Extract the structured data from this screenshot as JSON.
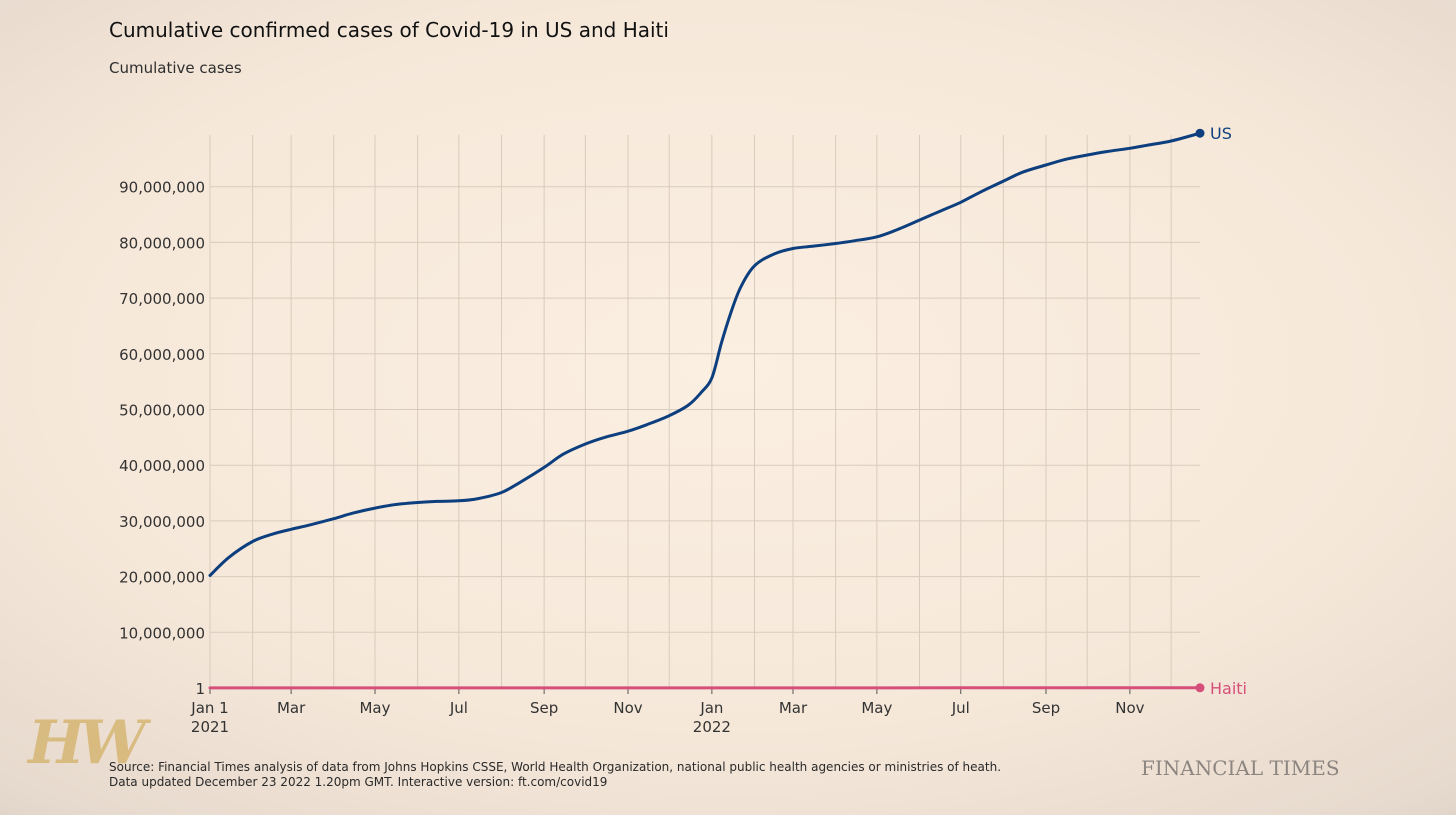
{
  "header": {
    "title": "Cumulative confirmed cases of Covid-19 in US and Haiti",
    "subtitle": "Cumulative cases"
  },
  "footer": {
    "source": "Source: Financial Times analysis of data from Johns Hopkins CSSE, World Health Organization, national public health agencies or ministries of heath.",
    "updated": "Data updated December 23 2022 1.20pm GMT. Interactive version: ft.com/covid19",
    "publisher": "FINANCIAL TIMES",
    "watermark": "HW"
  },
  "colors": {
    "background": "#f6e8d9",
    "grid": "#d9cbbd",
    "us": "#0d3f7e",
    "haiti": "#d64f7a",
    "axis_text": "#333333"
  },
  "chart_data": {
    "type": "line",
    "title": "Cumulative confirmed cases of Covid-19 in US and Haiti",
    "subtitle": "Cumulative cases",
    "xlabel": "",
    "ylabel": "",
    "xlim": [
      "2021-01-01",
      "2022-12-22"
    ],
    "ylim": [
      1,
      100000000
    ],
    "grid": true,
    "legend": "end-of-line labels",
    "y_ticks": [
      {
        "value": 1,
        "label": "1"
      },
      {
        "value": 10000000,
        "label": "10,000,000"
      },
      {
        "value": 20000000,
        "label": "20,000,000"
      },
      {
        "value": 30000000,
        "label": "30,000,000"
      },
      {
        "value": 40000000,
        "label": "40,000,000"
      },
      {
        "value": 50000000,
        "label": "50,000,000"
      },
      {
        "value": 60000000,
        "label": "60,000,000"
      },
      {
        "value": 70000000,
        "label": "70,000,000"
      },
      {
        "value": 80000000,
        "label": "80,000,000"
      },
      {
        "value": 90000000,
        "label": "90,000,000"
      }
    ],
    "x_ticks": [
      {
        "date": "2021-01-01",
        "label": "Jan 1",
        "sublabel": "2021"
      },
      {
        "date": "2021-03-01",
        "label": "Mar",
        "sublabel": ""
      },
      {
        "date": "2021-05-01",
        "label": "May",
        "sublabel": ""
      },
      {
        "date": "2021-07-01",
        "label": "Jul",
        "sublabel": ""
      },
      {
        "date": "2021-09-01",
        "label": "Sep",
        "sublabel": ""
      },
      {
        "date": "2021-11-01",
        "label": "Nov",
        "sublabel": ""
      },
      {
        "date": "2022-01-01",
        "label": "Jan",
        "sublabel": "2022"
      },
      {
        "date": "2022-03-01",
        "label": "Mar",
        "sublabel": ""
      },
      {
        "date": "2022-05-01",
        "label": "May",
        "sublabel": ""
      },
      {
        "date": "2022-07-01",
        "label": "Jul",
        "sublabel": ""
      },
      {
        "date": "2022-09-01",
        "label": "Sep",
        "sublabel": ""
      },
      {
        "date": "2022-11-01",
        "label": "Nov",
        "sublabel": ""
      }
    ],
    "month_grid": [
      "2021-02-01",
      "2021-03-01",
      "2021-04-01",
      "2021-05-01",
      "2021-06-01",
      "2021-07-01",
      "2021-08-01",
      "2021-09-01",
      "2021-10-01",
      "2021-11-01",
      "2021-12-01",
      "2022-01-01",
      "2022-02-01",
      "2022-03-01",
      "2022-04-01",
      "2022-05-01",
      "2022-06-01",
      "2022-07-01",
      "2022-08-01",
      "2022-09-01",
      "2022-10-01",
      "2022-11-01",
      "2022-12-01"
    ],
    "series": [
      {
        "name": "US",
        "color": "#0d3f7e",
        "points": [
          {
            "x": "2021-01-01",
            "y": 20200000
          },
          {
            "x": "2021-01-15",
            "y": 23500000
          },
          {
            "x": "2021-02-01",
            "y": 26300000
          },
          {
            "x": "2021-02-15",
            "y": 27600000
          },
          {
            "x": "2021-03-01",
            "y": 28500000
          },
          {
            "x": "2021-03-15",
            "y": 29300000
          },
          {
            "x": "2021-04-01",
            "y": 30400000
          },
          {
            "x": "2021-04-15",
            "y": 31400000
          },
          {
            "x": "2021-05-01",
            "y": 32300000
          },
          {
            "x": "2021-05-15",
            "y": 32900000
          },
          {
            "x": "2021-06-01",
            "y": 33300000
          },
          {
            "x": "2021-06-15",
            "y": 33500000
          },
          {
            "x": "2021-07-01",
            "y": 33600000
          },
          {
            "x": "2021-07-15",
            "y": 34000000
          },
          {
            "x": "2021-08-01",
            "y": 35100000
          },
          {
            "x": "2021-08-15",
            "y": 37000000
          },
          {
            "x": "2021-09-01",
            "y": 39600000
          },
          {
            "x": "2021-09-15",
            "y": 42000000
          },
          {
            "x": "2021-10-01",
            "y": 43800000
          },
          {
            "x": "2021-10-15",
            "y": 45000000
          },
          {
            "x": "2021-11-01",
            "y": 46100000
          },
          {
            "x": "2021-11-15",
            "y": 47300000
          },
          {
            "x": "2021-12-01",
            "y": 48900000
          },
          {
            "x": "2021-12-15",
            "y": 50800000
          },
          {
            "x": "2021-12-24",
            "y": 53000000
          },
          {
            "x": "2022-01-01",
            "y": 55700000
          },
          {
            "x": "2022-01-08",
            "y": 62000000
          },
          {
            "x": "2022-01-15",
            "y": 67500000
          },
          {
            "x": "2022-01-22",
            "y": 72000000
          },
          {
            "x": "2022-02-01",
            "y": 75800000
          },
          {
            "x": "2022-02-15",
            "y": 77900000
          },
          {
            "x": "2022-03-01",
            "y": 78900000
          },
          {
            "x": "2022-03-15",
            "y": 79300000
          },
          {
            "x": "2022-04-01",
            "y": 79800000
          },
          {
            "x": "2022-04-15",
            "y": 80300000
          },
          {
            "x": "2022-05-01",
            "y": 81000000
          },
          {
            "x": "2022-05-15",
            "y": 82200000
          },
          {
            "x": "2022-06-01",
            "y": 84000000
          },
          {
            "x": "2022-06-15",
            "y": 85500000
          },
          {
            "x": "2022-07-01",
            "y": 87200000
          },
          {
            "x": "2022-07-15",
            "y": 89000000
          },
          {
            "x": "2022-08-01",
            "y": 91000000
          },
          {
            "x": "2022-08-15",
            "y": 92600000
          },
          {
            "x": "2022-09-01",
            "y": 93900000
          },
          {
            "x": "2022-09-15",
            "y": 94900000
          },
          {
            "x": "2022-10-01",
            "y": 95700000
          },
          {
            "x": "2022-10-15",
            "y": 96300000
          },
          {
            "x": "2022-11-01",
            "y": 96900000
          },
          {
            "x": "2022-11-15",
            "y": 97500000
          },
          {
            "x": "2022-12-01",
            "y": 98200000
          },
          {
            "x": "2022-12-22",
            "y": 99600000
          }
        ]
      },
      {
        "name": "Haiti",
        "color": "#d64f7a",
        "points": [
          {
            "x": "2021-01-01",
            "y": 10700
          },
          {
            "x": "2021-07-01",
            "y": 19400
          },
          {
            "x": "2022-01-01",
            "y": 25000
          },
          {
            "x": "2022-07-01",
            "y": 32000
          },
          {
            "x": "2022-12-22",
            "y": 33900
          }
        ]
      }
    ]
  }
}
